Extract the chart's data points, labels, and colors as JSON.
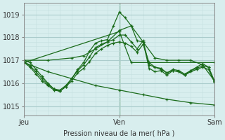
{
  "bg_color": "#d8eeee",
  "grid_color_major": "#aacccc",
  "grid_color_minor": "#c4dede",
  "line_color": "#1a6b1a",
  "xlabel": "Pression niveau de la mer( hPa )",
  "yticks": [
    1015,
    1016,
    1017,
    1018,
    1019
  ],
  "ylim": [
    1014.6,
    1019.5
  ],
  "xtick_labels": [
    "Jeu",
    "Ven",
    "Sam"
  ],
  "xtick_positions": [
    0,
    48,
    96
  ],
  "xlim": [
    0,
    96
  ],
  "vline_x": 48,
  "series": [
    {
      "x": [
        0,
        12,
        24,
        30,
        36,
        42,
        48,
        54,
        60,
        66,
        72,
        78,
        84,
        90,
        96
      ],
      "y": [
        1017.0,
        1017.0,
        1017.1,
        1017.2,
        1017.5,
        1017.8,
        1018.3,
        1018.5,
        1017.8,
        1017.1,
        1017.0,
        1017.0,
        1017.0,
        1016.8,
        1016.1
      ]
    },
    {
      "x": [
        0,
        12,
        24,
        36,
        48,
        60,
        72,
        84,
        96
      ],
      "y": [
        1016.9,
        1016.5,
        1016.2,
        1015.9,
        1015.7,
        1015.5,
        1015.3,
        1015.15,
        1015.05
      ]
    },
    {
      "x": [
        0,
        3,
        6,
        9,
        12,
        15,
        18,
        21,
        24,
        27,
        30,
        33,
        36,
        39,
        42,
        45,
        48,
        51,
        54,
        57,
        60,
        63,
        66,
        69,
        72,
        75,
        78,
        81,
        84,
        87,
        90,
        93,
        96
      ],
      "y": [
        1017.0,
        1016.9,
        1016.6,
        1016.3,
        1016.0,
        1015.75,
        1015.65,
        1015.85,
        1016.2,
        1016.6,
        1016.9,
        1017.4,
        1017.75,
        1017.85,
        1017.9,
        1018.5,
        1019.1,
        1018.85,
        1018.5,
        1017.85,
        1017.8,
        1016.65,
        1016.5,
        1016.55,
        1016.35,
        1016.55,
        1016.5,
        1016.35,
        1016.55,
        1016.7,
        1016.85,
        1016.7,
        1016.1
      ]
    },
    {
      "x": [
        0,
        3,
        6,
        9,
        12,
        15,
        18,
        21,
        24,
        27,
        30,
        33,
        36,
        39,
        42,
        45,
        48,
        51,
        54,
        57,
        60,
        63,
        66,
        69,
        72,
        75,
        78,
        81,
        84,
        87,
        90,
        93,
        96
      ],
      "y": [
        1016.95,
        1016.75,
        1016.5,
        1016.2,
        1015.95,
        1015.75,
        1015.7,
        1015.9,
        1016.2,
        1016.55,
        1016.8,
        1017.15,
        1017.55,
        1017.7,
        1017.8,
        1017.9,
        1018.1,
        1018.1,
        1017.8,
        1017.5,
        1017.85,
        1016.8,
        1016.7,
        1016.65,
        1016.45,
        1016.6,
        1016.55,
        1016.4,
        1016.55,
        1016.65,
        1016.75,
        1016.7,
        1016.05
      ]
    },
    {
      "x": [
        0,
        3,
        6,
        9,
        12,
        15,
        18,
        21,
        24,
        27,
        30,
        33,
        36,
        39,
        42,
        45,
        48,
        51,
        54,
        57,
        60,
        63,
        66,
        69,
        72,
        75,
        78,
        81,
        84,
        87,
        90,
        93,
        96
      ],
      "y": [
        1016.9,
        1016.7,
        1016.4,
        1016.1,
        1015.9,
        1015.7,
        1015.65,
        1015.85,
        1016.1,
        1016.45,
        1016.65,
        1016.95,
        1017.3,
        1017.5,
        1017.65,
        1017.75,
        1017.8,
        1017.75,
        1017.6,
        1017.35,
        1017.7,
        1016.9,
        1016.7,
        1016.6,
        1016.45,
        1016.55,
        1016.5,
        1016.35,
        1016.5,
        1016.6,
        1016.7,
        1016.6,
        1016.05
      ]
    },
    {
      "x": [
        0,
        48,
        54,
        96
      ],
      "y": [
        1016.9,
        1018.25,
        1016.9,
        1016.9
      ]
    }
  ]
}
